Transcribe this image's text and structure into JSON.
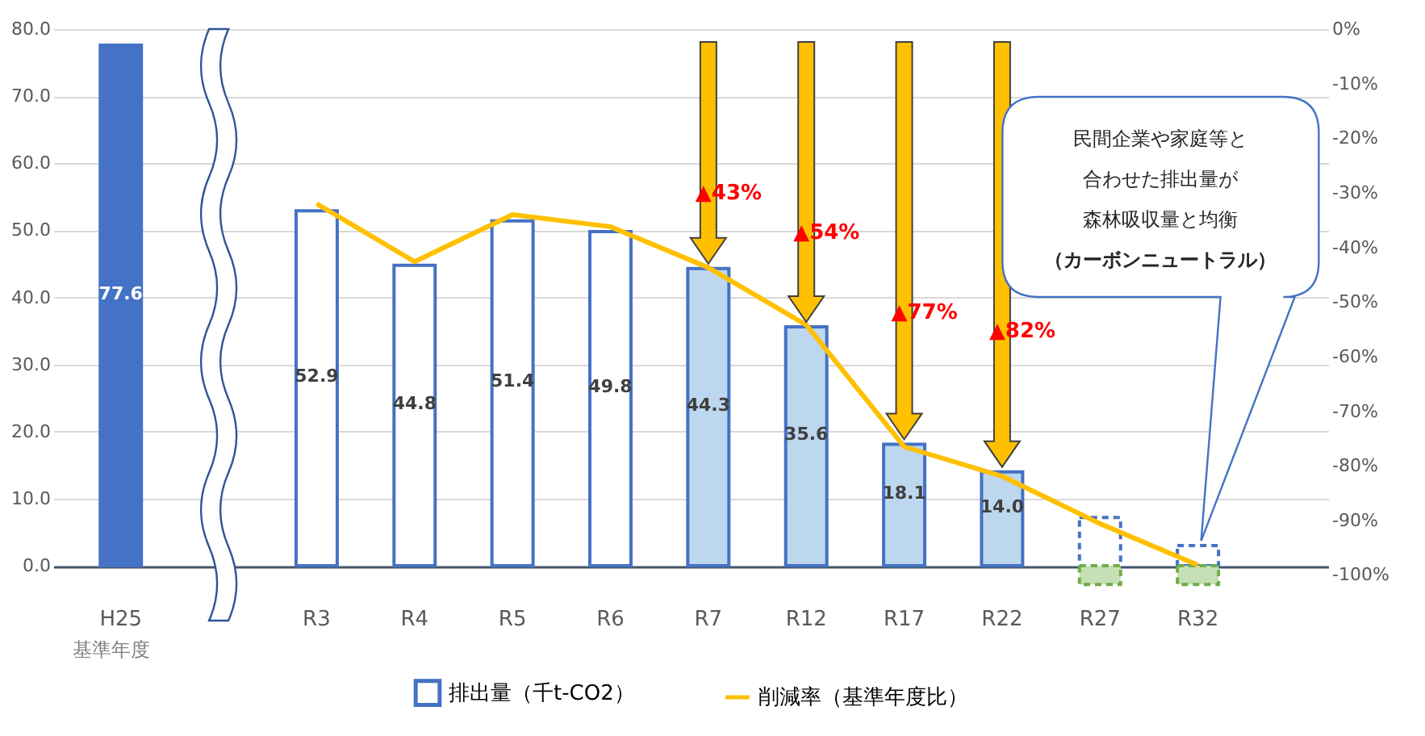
{
  "chart_data": {
    "type": "bar",
    "categories": [
      "H25",
      null,
      "R3",
      "R4",
      "R5",
      "R6",
      "R7",
      "R12",
      "R17",
      "R22",
      "R27",
      "R32"
    ],
    "series": [
      {
        "name": "排出量（千t-CO2）",
        "color": "#4472c4",
        "colors": [
          "#4472c4",
          null,
          "#ffffff",
          "#ffffff",
          "#ffffff",
          "#ffffff",
          "#bdd7ee",
          "#bdd7ee",
          "#bdd7ee",
          "#bdd7ee",
          null,
          null
        ],
        "values": [
          77.6,
          null,
          52.9,
          44.8,
          51.4,
          49.8,
          44.3,
          35.6,
          18.1,
          14.0,
          null,
          null
        ],
        "value_labels": [
          "77.6",
          null,
          "52.9",
          "44.8",
          "51.4",
          "49.8",
          "44.3",
          "35.6",
          "18.1",
          "14.0",
          null,
          null
        ]
      },
      {
        "color": "#4472c4",
        "line_style": "dashed",
        "colors": [
          null,
          null,
          null,
          null,
          null,
          null,
          null,
          null,
          null,
          null,
          "#ffffff",
          "#ffffff"
        ],
        "values": [
          null,
          null,
          null,
          null,
          null,
          null,
          null,
          null,
          null,
          null,
          7.2,
          3.0
        ]
      },
      {
        "color": "#70ad47",
        "line_style": "dashed",
        "colors": [
          null,
          null,
          null,
          null,
          null,
          null,
          null,
          null,
          null,
          null,
          "#c5e0b4",
          "#c5e0b4"
        ],
        "values": [
          null,
          null,
          null,
          null,
          null,
          null,
          null,
          null,
          null,
          null,
          -2.8,
          -2.8
        ]
      },
      {
        "name": "削減率（基準年度比）",
        "type": "line",
        "axis": "y2",
        "color": "#ffc000",
        "values": [
          null,
          null,
          -32.0,
          -42.6,
          -34.0,
          -36.2,
          -43.7,
          -54.2,
          -76.5,
          -81.9,
          -90.6,
          -98.2
        ]
      }
    ],
    "ylim": [
      -3,
      80
    ],
    "yticks": [
      {
        "value": 0,
        "label": "0.0"
      },
      {
        "value": 10,
        "label": "10.0"
      },
      {
        "value": 20,
        "label": "20.0"
      },
      {
        "value": 30,
        "label": "30.0"
      },
      {
        "value": 40,
        "label": "40.0"
      },
      {
        "value": 50,
        "label": "50.0"
      },
      {
        "value": 60,
        "label": "60.0"
      },
      {
        "value": 70,
        "label": "70.0"
      },
      {
        "value": 80,
        "label": "80.0"
      }
    ],
    "y2lim": [
      -102,
      0
    ],
    "y2ticks": [
      {
        "value": 0,
        "label": "0%"
      },
      {
        "value": -10,
        "label": "-10%"
      },
      {
        "value": -20,
        "label": "-20%"
      },
      {
        "value": -30,
        "label": "-30%"
      },
      {
        "value": -40,
        "label": "-40%"
      },
      {
        "value": -50,
        "label": "-50%"
      },
      {
        "value": -60,
        "label": "-60%"
      },
      {
        "value": -70,
        "label": "-70%"
      },
      {
        "value": -80,
        "label": "-80%"
      },
      {
        "value": -90,
        "label": "-90%"
      },
      {
        "value": -100,
        "label": "-100%"
      }
    ],
    "grid": "y",
    "legend": "bottom",
    "annotations": [
      "基準年度",
      "▲43%",
      "▲54%",
      "▲77%",
      "▲82%",
      "民間企業や家庭等と合わせた排出量が森林吸収量と均衡（カーボンニュートラル）"
    ]
  }
}
